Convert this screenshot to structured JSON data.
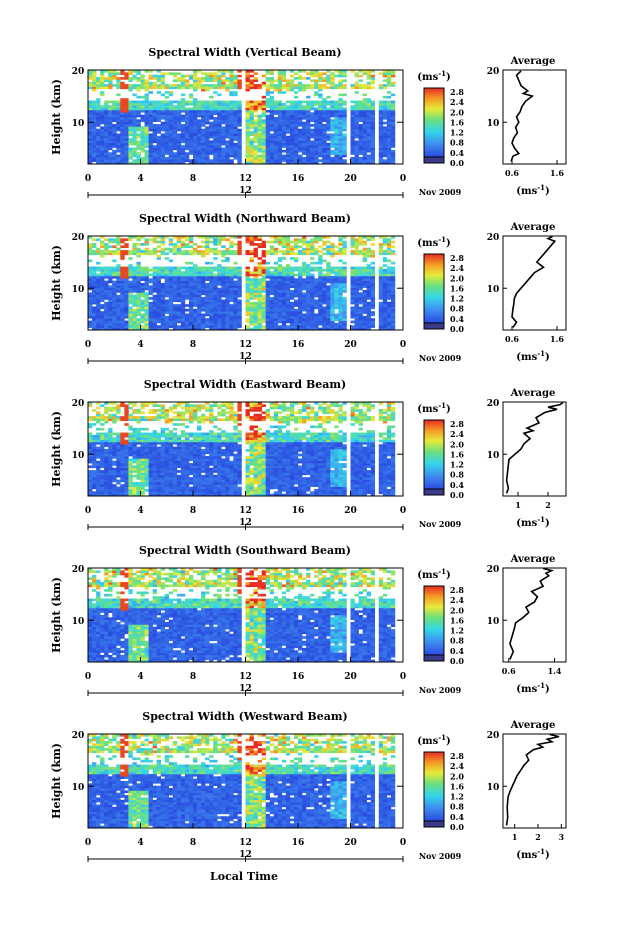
{
  "chart_data": {
    "type": "heatmap",
    "xlabel": "Local Time",
    "ylabel": "Height (km)",
    "date_label": "Nov 2009",
    "day_tick_label": "12",
    "xticks": [
      "0",
      "4",
      "8",
      "12",
      "16",
      "20",
      "0"
    ],
    "xlim": [
      0,
      24
    ],
    "yticks": [
      10,
      20
    ],
    "ylim": [
      2,
      20
    ],
    "colorbar": {
      "unit_base": "(ms",
      "unit_exp": "-1",
      "unit_close": ")",
      "tick_labels": [
        "2.8",
        "2.4",
        "2.0",
        "1.6",
        "1.2",
        "0.8",
        "0.4",
        "0.0"
      ],
      "range": [
        0.0,
        3.0
      ]
    },
    "average_title": "Average",
    "average_xlabel_base": "(ms",
    "average_xlabel_exp": "-1",
    "average_xlabel_close": ")",
    "panels": [
      {
        "title": "Spectral Width (Vertical Beam)",
        "avg_xticks": [
          "0.6",
          "1.6"
        ],
        "avg_xlim": [
          0.4,
          1.8
        ],
        "avg_profile": [
          [
            0.58,
            2.5
          ],
          [
            0.62,
            3.5
          ],
          [
            0.75,
            4.0
          ],
          [
            0.66,
            5.0
          ],
          [
            0.6,
            6.0
          ],
          [
            0.64,
            7.0
          ],
          [
            0.72,
            8.0
          ],
          [
            0.68,
            9.0
          ],
          [
            0.75,
            10.0
          ],
          [
            0.7,
            11.0
          ],
          [
            0.78,
            12.0
          ],
          [
            0.82,
            13.0
          ],
          [
            0.9,
            14.0
          ],
          [
            1.05,
            15.0
          ],
          [
            0.85,
            15.5
          ],
          [
            0.95,
            16.0
          ],
          [
            0.8,
            17.0
          ],
          [
            0.75,
            18.0
          ],
          [
            0.7,
            19.0
          ],
          [
            0.8,
            19.8
          ]
        ]
      },
      {
        "title": "Spectral Width (Northward Beam)",
        "avg_xticks": [
          "0.6",
          "1.6"
        ],
        "avg_xlim": [
          0.4,
          1.8
        ],
        "avg_profile": [
          [
            0.62,
            2.5
          ],
          [
            0.7,
            3.5
          ],
          [
            0.6,
            4.5
          ],
          [
            0.62,
            6.0
          ],
          [
            0.64,
            7.0
          ],
          [
            0.65,
            8.0
          ],
          [
            0.7,
            9.0
          ],
          [
            0.8,
            10.0
          ],
          [
            0.9,
            11.0
          ],
          [
            1.0,
            12.0
          ],
          [
            1.1,
            13.0
          ],
          [
            1.3,
            14.0
          ],
          [
            1.15,
            15.0
          ],
          [
            1.25,
            16.0
          ],
          [
            1.35,
            17.0
          ],
          [
            1.45,
            18.0
          ],
          [
            1.55,
            19.0
          ],
          [
            1.4,
            19.5
          ],
          [
            1.5,
            19.9
          ]
        ]
      },
      {
        "title": "Spectral Width (Eastward Beam)",
        "avg_xticks": [
          "1",
          "2"
        ],
        "avg_xlim": [
          0.5,
          2.6
        ],
        "avg_profile": [
          [
            0.62,
            2.5
          ],
          [
            0.68,
            3.5
          ],
          [
            0.62,
            5.0
          ],
          [
            0.66,
            7.0
          ],
          [
            0.7,
            9.0
          ],
          [
            0.9,
            10.0
          ],
          [
            1.1,
            11.0
          ],
          [
            1.2,
            12.0
          ],
          [
            1.4,
            13.0
          ],
          [
            1.2,
            14.0
          ],
          [
            1.5,
            14.5
          ],
          [
            1.3,
            15.0
          ],
          [
            1.7,
            16.0
          ],
          [
            1.6,
            17.0
          ],
          [
            1.9,
            18.0
          ],
          [
            2.3,
            18.6
          ],
          [
            2.0,
            19.0
          ],
          [
            2.4,
            19.5
          ],
          [
            2.5,
            19.9
          ]
        ]
      },
      {
        "title": "Spectral Width (Southward Beam)",
        "avg_xticks": [
          "0.6",
          "1.4"
        ],
        "avg_xlim": [
          0.5,
          1.6
        ],
        "avg_profile": [
          [
            0.62,
            2.5
          ],
          [
            0.68,
            4.0
          ],
          [
            0.62,
            5.5
          ],
          [
            0.66,
            7.0
          ],
          [
            0.7,
            8.5
          ],
          [
            0.72,
            9.5
          ],
          [
            0.85,
            10.5
          ],
          [
            0.95,
            11.5
          ],
          [
            0.9,
            12.5
          ],
          [
            1.05,
            13.5
          ],
          [
            1.1,
            14.5
          ],
          [
            1.0,
            15.5
          ],
          [
            1.2,
            16.5
          ],
          [
            1.15,
            17.5
          ],
          [
            1.3,
            18.5
          ],
          [
            1.25,
            19.0
          ],
          [
            1.35,
            19.5
          ],
          [
            1.2,
            19.9
          ]
        ]
      },
      {
        "title": "Spectral Width (Westward Beam)",
        "avg_xticks": [
          "1",
          "2",
          "3"
        ],
        "avg_xlim": [
          0.5,
          3.2
        ],
        "avg_profile": [
          [
            0.65,
            2.5
          ],
          [
            0.7,
            4.0
          ],
          [
            0.68,
            6.0
          ],
          [
            0.72,
            8.0
          ],
          [
            0.8,
            9.0
          ],
          [
            0.9,
            10.0
          ],
          [
            1.0,
            11.0
          ],
          [
            1.1,
            12.0
          ],
          [
            1.25,
            13.0
          ],
          [
            1.4,
            14.0
          ],
          [
            1.6,
            15.0
          ],
          [
            1.5,
            16.0
          ],
          [
            1.8,
            17.0
          ],
          [
            2.2,
            17.5
          ],
          [
            2.0,
            18.0
          ],
          [
            2.6,
            18.5
          ],
          [
            2.4,
            19.0
          ],
          [
            2.9,
            19.5
          ],
          [
            2.5,
            19.9
          ]
        ]
      }
    ]
  }
}
